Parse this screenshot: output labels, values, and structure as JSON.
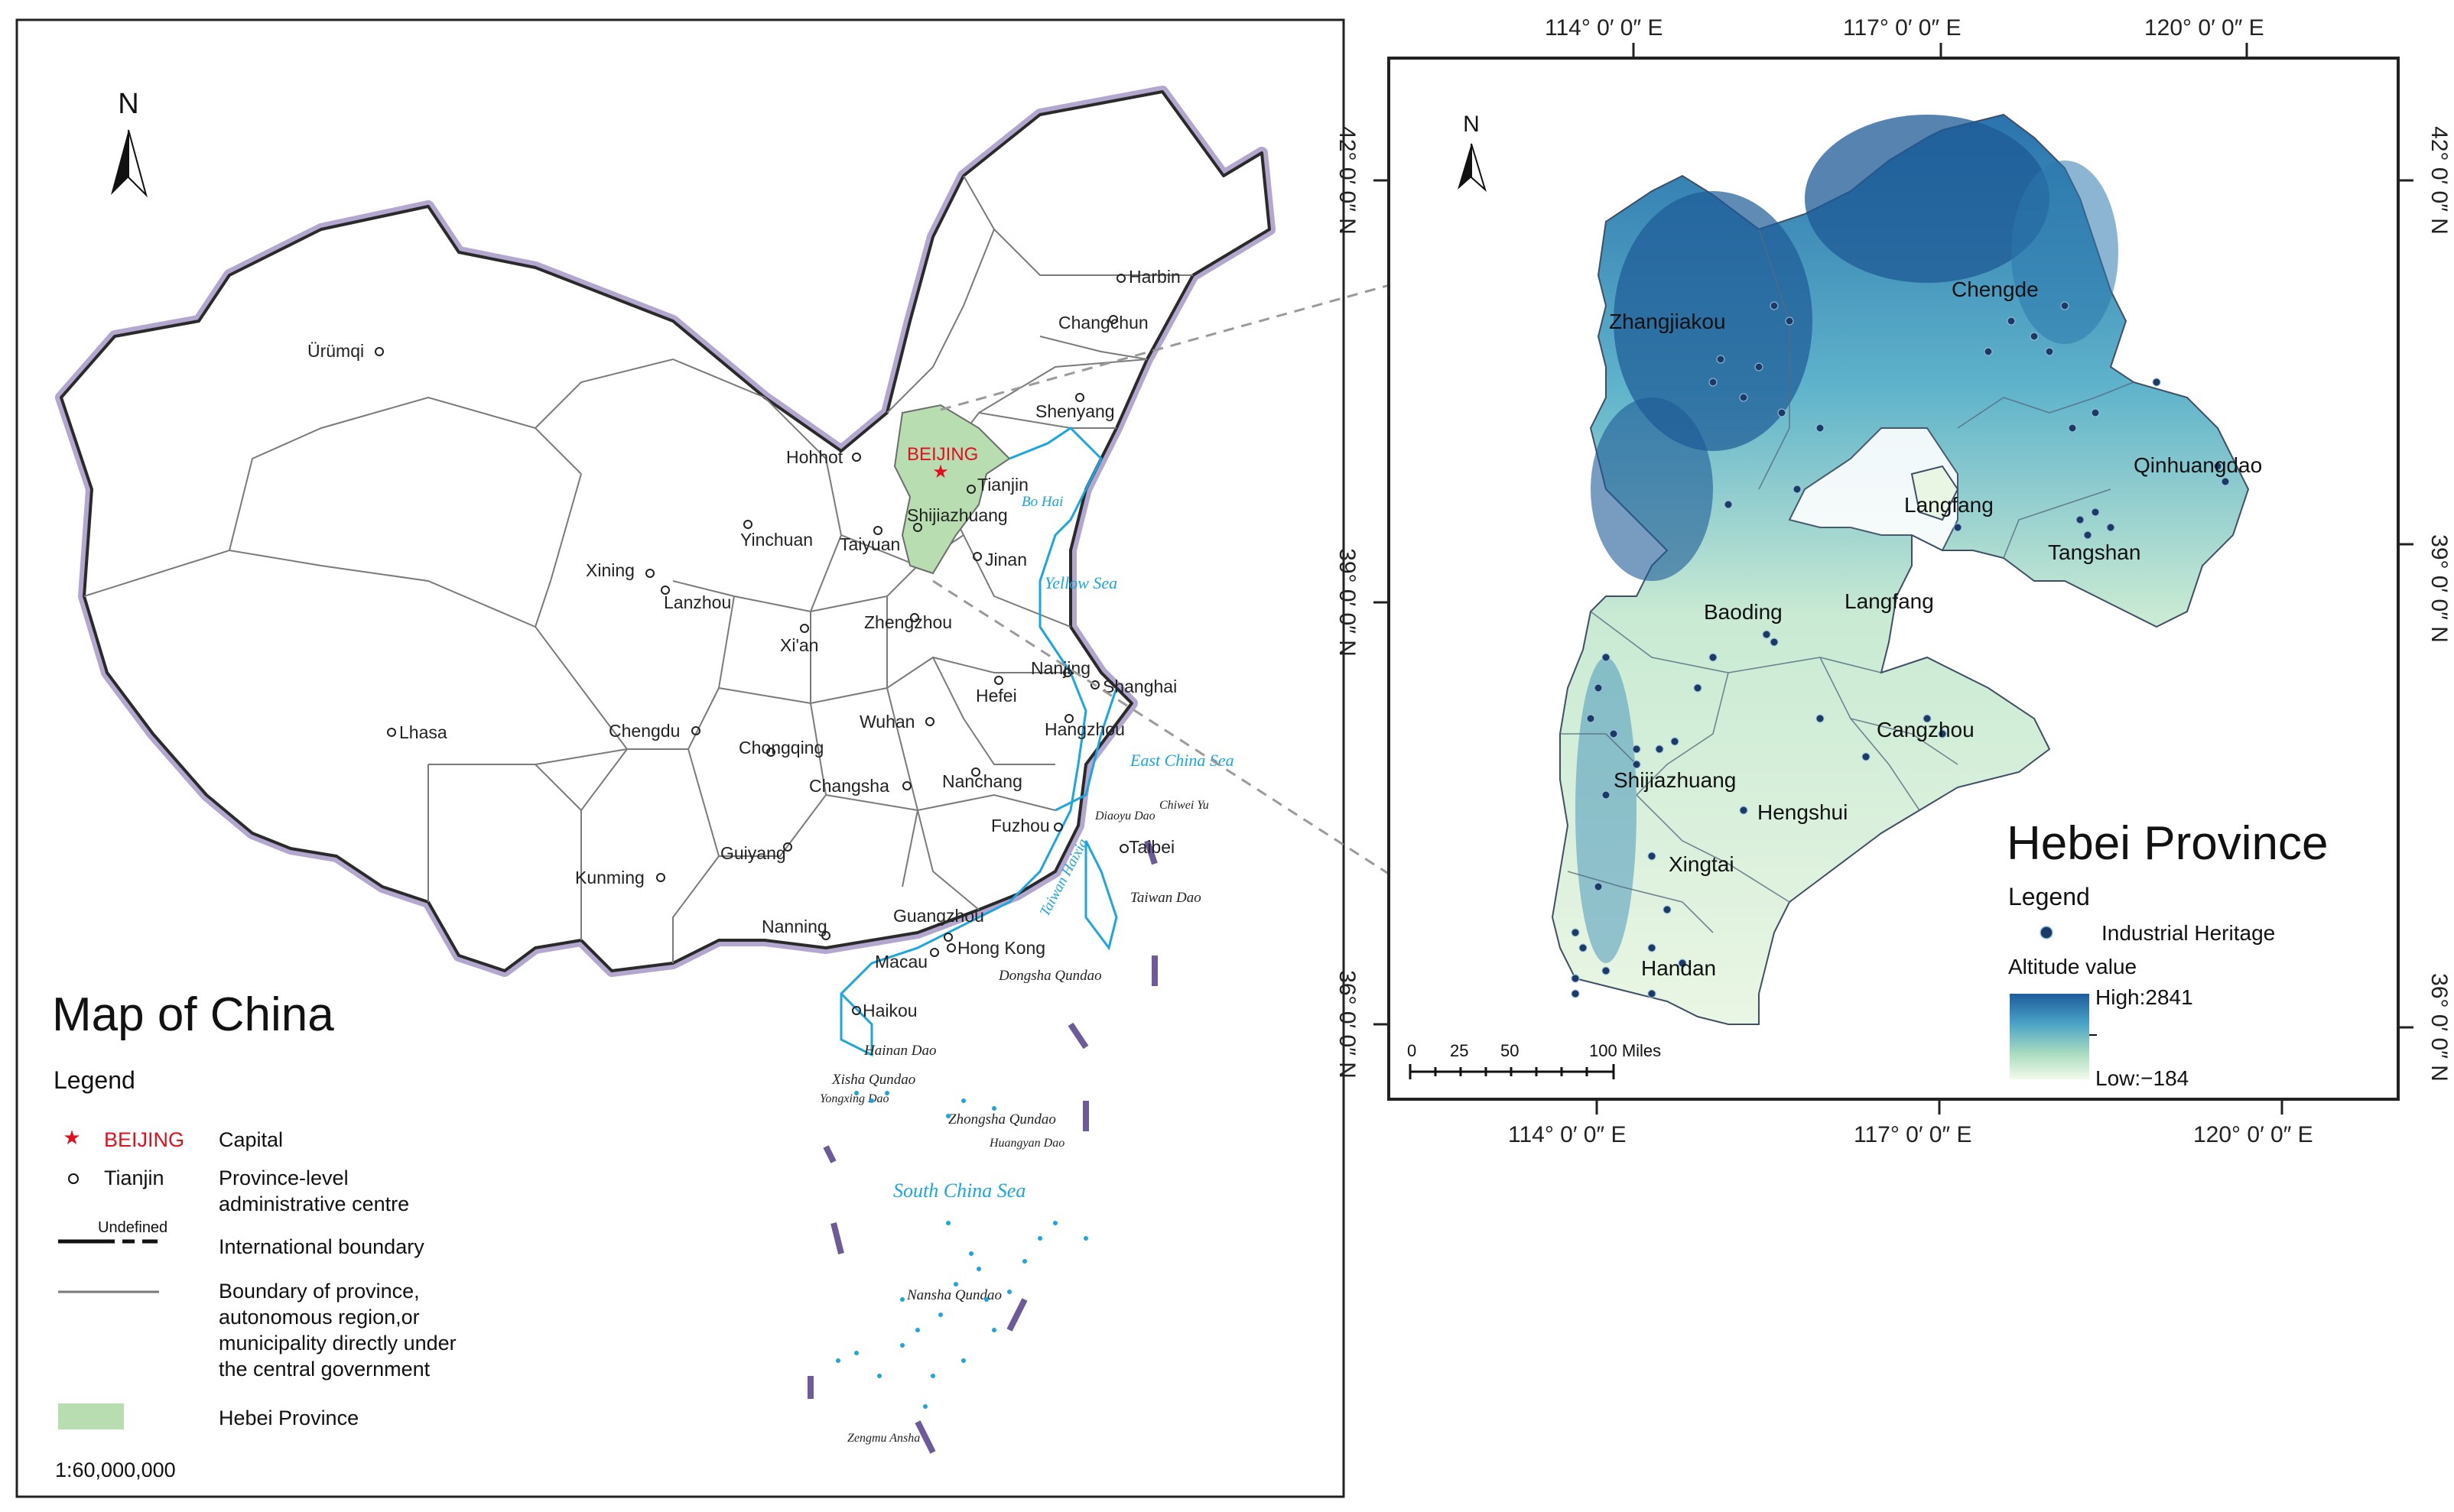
{
  "china_map": {
    "north_label": "N",
    "title": "Map of China",
    "legend_title": "Legend",
    "legend": {
      "capital_sample": "BEIJING",
      "capital_desc": "Capital",
      "centre_sample": "Tianjin",
      "centre_desc_1": "Province-level",
      "centre_desc_2": "administrative centre",
      "intl_undefined": "Undefined",
      "intl_desc": "International boundary",
      "prov_desc_1": "Boundary of province,",
      "prov_desc_2": "autonomous region,or",
      "prov_desc_3": "municipality directly under",
      "prov_desc_4": "the central government",
      "hebei_desc": "Hebei Province"
    },
    "scale": "1:60,000,000",
    "capital_label": "BEIJING",
    "cities": [
      {
        "name": "Harbin"
      },
      {
        "name": "Changchun"
      },
      {
        "name": "Ürümqi"
      },
      {
        "name": "Shenyang"
      },
      {
        "name": "Hohhot"
      },
      {
        "name": "Tianjin"
      },
      {
        "name": "Shijiazhuang"
      },
      {
        "name": "Yinchuan"
      },
      {
        "name": "Taiyuan"
      },
      {
        "name": "Jinan"
      },
      {
        "name": "Xining"
      },
      {
        "name": "Lanzhou"
      },
      {
        "name": "Xi'an"
      },
      {
        "name": "Zhengzhou"
      },
      {
        "name": "Nanjing"
      },
      {
        "name": "Shanghai"
      },
      {
        "name": "Hefei"
      },
      {
        "name": "Lhasa"
      },
      {
        "name": "Chengdu"
      },
      {
        "name": "Wuhan"
      },
      {
        "name": "Chongqing"
      },
      {
        "name": "Hangzhou"
      },
      {
        "name": "Changsha"
      },
      {
        "name": "Nanchang"
      },
      {
        "name": "Fuzhou"
      },
      {
        "name": "Taibei"
      },
      {
        "name": "Guiyang"
      },
      {
        "name": "Kunming"
      },
      {
        "name": "Nanning"
      },
      {
        "name": "Guangzhou"
      },
      {
        "name": "Macau"
      },
      {
        "name": "Hong Kong"
      },
      {
        "name": "Haikou"
      }
    ],
    "water_labels": [
      "Bo Hai",
      "Yellow  Sea",
      "East China Sea",
      "South  China  Sea",
      "Taiwan  Haixia"
    ],
    "island_labels": [
      "Diaoyu Dao",
      "Chiwei Yu",
      "Taiwan Dao",
      "Dongsha Qundao",
      "Hainan Dao",
      "Xisha Qundao",
      "Yongxing Dao",
      "Zhongsha Qundao",
      "Huangyan Dao",
      "Nansha Qundao",
      "Zengmu Ansha"
    ]
  },
  "hebei_map": {
    "north_label": "N",
    "title": "Hebei Province",
    "legend_title": "Legend",
    "legend_item": "Industrial Heritage",
    "altitude_label": "Altitude value",
    "high_label": "High:2841",
    "low_label": "Low:−184",
    "scale_labels": [
      "0",
      "25",
      "50",
      "100 Miles"
    ],
    "lon_labels": [
      "114°  0′  0″ E",
      "117°  0′  0″ E",
      "120°  0′  0″ E"
    ],
    "lon_labels_bottom": [
      "114°  0′  0″ E",
      "117°  0′  0″ E",
      "120°  0′  0″ E"
    ],
    "lat_labels": [
      "42°  0′  0″ N",
      "39°  0′  0″ N",
      "36°  0′  0″ N"
    ],
    "cities": [
      {
        "name": "Chengde"
      },
      {
        "name": "Zhangjiakou"
      },
      {
        "name": "Qinhuangdao"
      },
      {
        "name": "Langfang"
      },
      {
        "name": "Tangshan"
      },
      {
        "name": "Baoding"
      },
      {
        "name": "Langfang"
      },
      {
        "name": "Cangzhou"
      },
      {
        "name": "Shijiazhuang"
      },
      {
        "name": "Hengshui"
      },
      {
        "name": "Xingtai"
      },
      {
        "name": "Handan"
      }
    ],
    "colors": {
      "high": "#1f5f9f",
      "mid": "#4fa9c8",
      "low": "#e6f4dd",
      "point": "#1b3b66"
    }
  }
}
